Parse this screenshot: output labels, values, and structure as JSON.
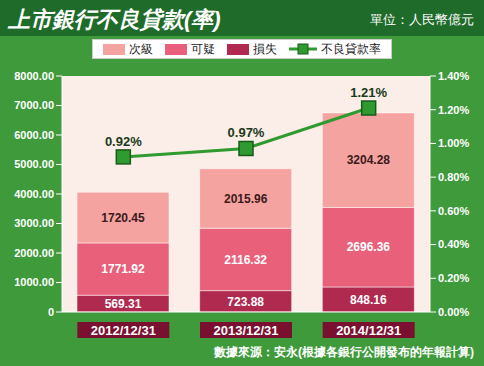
{
  "chart_data": {
    "type": "bar",
    "title": "上市銀行不良貸款(率)",
    "subtitle": "單位：人民幣億元",
    "source": "數據來源：安永(根據各銀行公開發布的年報計算)",
    "categories": [
      "2012/12/31",
      "2013/12/31",
      "2014/12/31"
    ],
    "stacked": true,
    "data_labels": true,
    "legend": "top",
    "grid": false,
    "series": [
      {
        "name": "次級",
        "color": "#f5a3a0",
        "values": [
          1720.45,
          2015.96,
          3204.28
        ]
      },
      {
        "name": "可疑",
        "color": "#e8607a",
        "values": [
          1771.92,
          2116.32,
          2696.36
        ]
      },
      {
        "name": "損失",
        "color": "#b02a4f",
        "values": [
          569.31,
          723.88,
          848.16
        ]
      },
      {
        "name": "不良貸款率",
        "type": "line",
        "axis": "y2",
        "color": "#2f9a2f",
        "marker": "square",
        "values": [
          0.92,
          0.97,
          1.21
        ],
        "value_labels": [
          "0.92%",
          "0.97%",
          "1.21%"
        ]
      }
    ],
    "ylim": [
      0,
      8000
    ],
    "yticks": [
      {
        "value": 0,
        "label": "0"
      },
      {
        "value": 1000,
        "label": "1000.00"
      },
      {
        "value": 2000,
        "label": "2000.00"
      },
      {
        "value": 3000,
        "label": "3000.00"
      },
      {
        "value": 4000,
        "label": "4000.00"
      },
      {
        "value": 5000,
        "label": "5000.00"
      },
      {
        "value": 6000,
        "label": "6000.00"
      },
      {
        "value": 7000,
        "label": "7000.00"
      },
      {
        "value": 8000,
        "label": "8000.00"
      }
    ],
    "y2lim": [
      0,
      1.4
    ],
    "y2ticks": [
      {
        "value": 0,
        "label": "0.00%"
      },
      {
        "value": 0.2,
        "label": "0.20%"
      },
      {
        "value": 0.4,
        "label": "0.40%"
      },
      {
        "value": 0.6,
        "label": "0.60%"
      },
      {
        "value": 0.8,
        "label": "0.80%"
      },
      {
        "value": 1.0,
        "label": "1.00%"
      },
      {
        "value": 1.2,
        "label": "1.20%"
      },
      {
        "value": 1.4,
        "label": "1.40%"
      }
    ]
  }
}
